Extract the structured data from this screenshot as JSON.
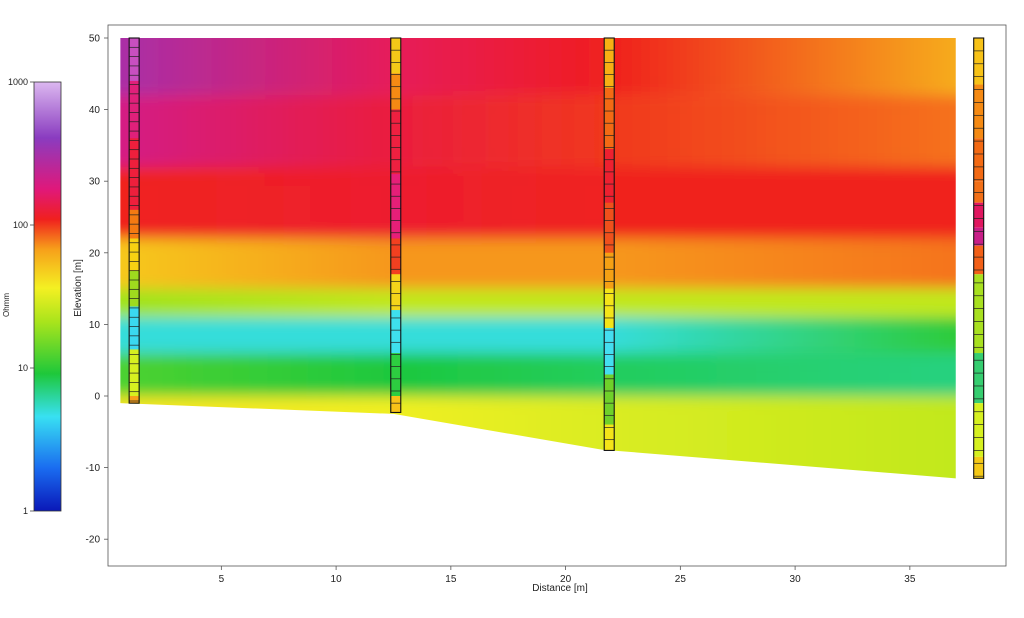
{
  "chart_data": {
    "type": "heatmap",
    "title": "",
    "xlabel": "Distance [m]",
    "ylabel": "Elevation [m]",
    "xlim": [
      0,
      39.5
    ],
    "ylim": [
      -24,
      50
    ],
    "x_ticks": [
      5,
      10,
      15,
      20,
      25,
      30,
      35
    ],
    "y_ticks": [
      50,
      40,
      30,
      20,
      10,
      0,
      -10,
      -20
    ],
    "colorbar": {
      "label": "Ohmm",
      "scale": "log",
      "range": [
        1,
        1000
      ],
      "ticks": [
        1000,
        100,
        10,
        1
      ]
    },
    "surface_top_elevation": 50,
    "section_bottom_profile": [
      {
        "distance": 0.6,
        "elevation": -1
      },
      {
        "distance": 12.5,
        "elevation": -2.5
      },
      {
        "distance": 21.6,
        "elevation": -7.5
      },
      {
        "distance": 37,
        "elevation": -11.5
      }
    ],
    "resistivity_layers_ohmm": [
      {
        "elev_top": 50,
        "elev_bottom": 42,
        "values_at_boreholes": [
          300,
          150,
          110,
          60
        ]
      },
      {
        "elev_top": 42,
        "elev_bottom": 32,
        "values_at_boreholes": [
          200,
          130,
          100,
          80
        ]
      },
      {
        "elev_top": 32,
        "elev_bottom": 22,
        "values_at_boreholes": [
          110,
          120,
          110,
          110
        ]
      },
      {
        "elev_top": 22,
        "elev_bottom": 15,
        "values_at_boreholes": [
          50,
          70,
          70,
          80
        ]
      },
      {
        "elev_top": 15,
        "elev_bottom": 11,
        "values_at_boreholes": [
          20,
          25,
          25,
          25
        ]
      },
      {
        "elev_top": 11,
        "elev_bottom": 6,
        "values_at_boreholes": [
          5,
          5,
          5,
          10
        ]
      },
      {
        "elev_top": 6,
        "elev_bottom": 0,
        "values_at_boreholes": [
          12,
          9,
          8,
          7
        ]
      },
      {
        "elev_top": 0,
        "elev_bottom": -12,
        "values_at_boreholes": [
          40,
          35,
          30,
          25
        ]
      }
    ],
    "boreholes": [
      {
        "distance": 1.2,
        "top": 50,
        "bottom": -1,
        "segments": [
          {
            "top": 50,
            "bottom": 44,
            "color": "#c84fc0"
          },
          {
            "top": 44,
            "bottom": 36,
            "color": "#e0207a"
          },
          {
            "top": 36,
            "bottom": 26,
            "color": "#ee1f3c"
          },
          {
            "top": 26,
            "bottom": 22,
            "color": "#f57a12"
          },
          {
            "top": 22,
            "bottom": 17.5,
            "color": "#f7d212"
          },
          {
            "top": 17.5,
            "bottom": 12.5,
            "color": "#9fdb1e"
          },
          {
            "top": 12.5,
            "bottom": 6.5,
            "color": "#3ad8f0"
          },
          {
            "top": 6.5,
            "bottom": 0,
            "color": "#d6f020"
          },
          {
            "top": 0,
            "bottom": -1,
            "color": "#f7a01a"
          }
        ],
        "cell_size": 1.3
      },
      {
        "distance": 12.6,
        "top": 50,
        "bottom": -2.3,
        "segments": [
          {
            "top": 50,
            "bottom": 45,
            "color": "#f4c818"
          },
          {
            "top": 45,
            "bottom": 40,
            "color": "#f58a14"
          },
          {
            "top": 40,
            "bottom": 31,
            "color": "#ee2040"
          },
          {
            "top": 31,
            "bottom": 22,
            "color": "#e61f78"
          },
          {
            "top": 22,
            "bottom": 17,
            "color": "#f24020"
          },
          {
            "top": 17,
            "bottom": 12,
            "color": "#f4d51a"
          },
          {
            "top": 12,
            "bottom": 6,
            "color": "#3ee0ee"
          },
          {
            "top": 6,
            "bottom": 0,
            "color": "#2dcd40"
          },
          {
            "top": 0,
            "bottom": -2.3,
            "color": "#f7c218"
          }
        ],
        "cell_size": 1.7
      },
      {
        "distance": 21.9,
        "top": 50,
        "bottom": -7.6,
        "segments": [
          {
            "top": 50,
            "bottom": 43,
            "color": "#f7b014"
          },
          {
            "top": 43,
            "bottom": 34.5,
            "color": "#f36a14"
          },
          {
            "top": 34.5,
            "bottom": 27,
            "color": "#ee2030"
          },
          {
            "top": 27,
            "bottom": 20,
            "color": "#f0501c"
          },
          {
            "top": 20,
            "bottom": 15,
            "color": "#f5a014"
          },
          {
            "top": 15,
            "bottom": 9.5,
            "color": "#f4e418"
          },
          {
            "top": 9.5,
            "bottom": 3,
            "color": "#44def0"
          },
          {
            "top": 3,
            "bottom": -4,
            "color": "#6fd02a"
          },
          {
            "top": -4,
            "bottom": -7.6,
            "color": "#f4e418"
          }
        ],
        "cell_size": 1.7
      },
      {
        "distance": 38.0,
        "top": 50,
        "bottom": -11.5,
        "segments": [
          {
            "top": 50,
            "bottom": 43.5,
            "color": "#f7c218"
          },
          {
            "top": 43.5,
            "bottom": 36,
            "color": "#f58a14"
          },
          {
            "top": 36,
            "bottom": 30,
            "color": "#f36a14"
          },
          {
            "top": 30,
            "bottom": 27,
            "color": "#f27018"
          },
          {
            "top": 27,
            "bottom": 23.5,
            "color": "#e01860"
          },
          {
            "top": 23.5,
            "bottom": 21,
            "color": "#c81f88"
          },
          {
            "top": 21,
            "bottom": 17,
            "color": "#f26018"
          },
          {
            "top": 17,
            "bottom": 6,
            "color": "#a8e020"
          },
          {
            "top": 6,
            "bottom": -1,
            "color": "#36cd70"
          },
          {
            "top": -1,
            "bottom": -8.5,
            "color": "#d6f020"
          },
          {
            "top": -8.5,
            "bottom": -11.5,
            "color": "#f4c818"
          }
        ],
        "cell_size": 1.8
      }
    ]
  }
}
